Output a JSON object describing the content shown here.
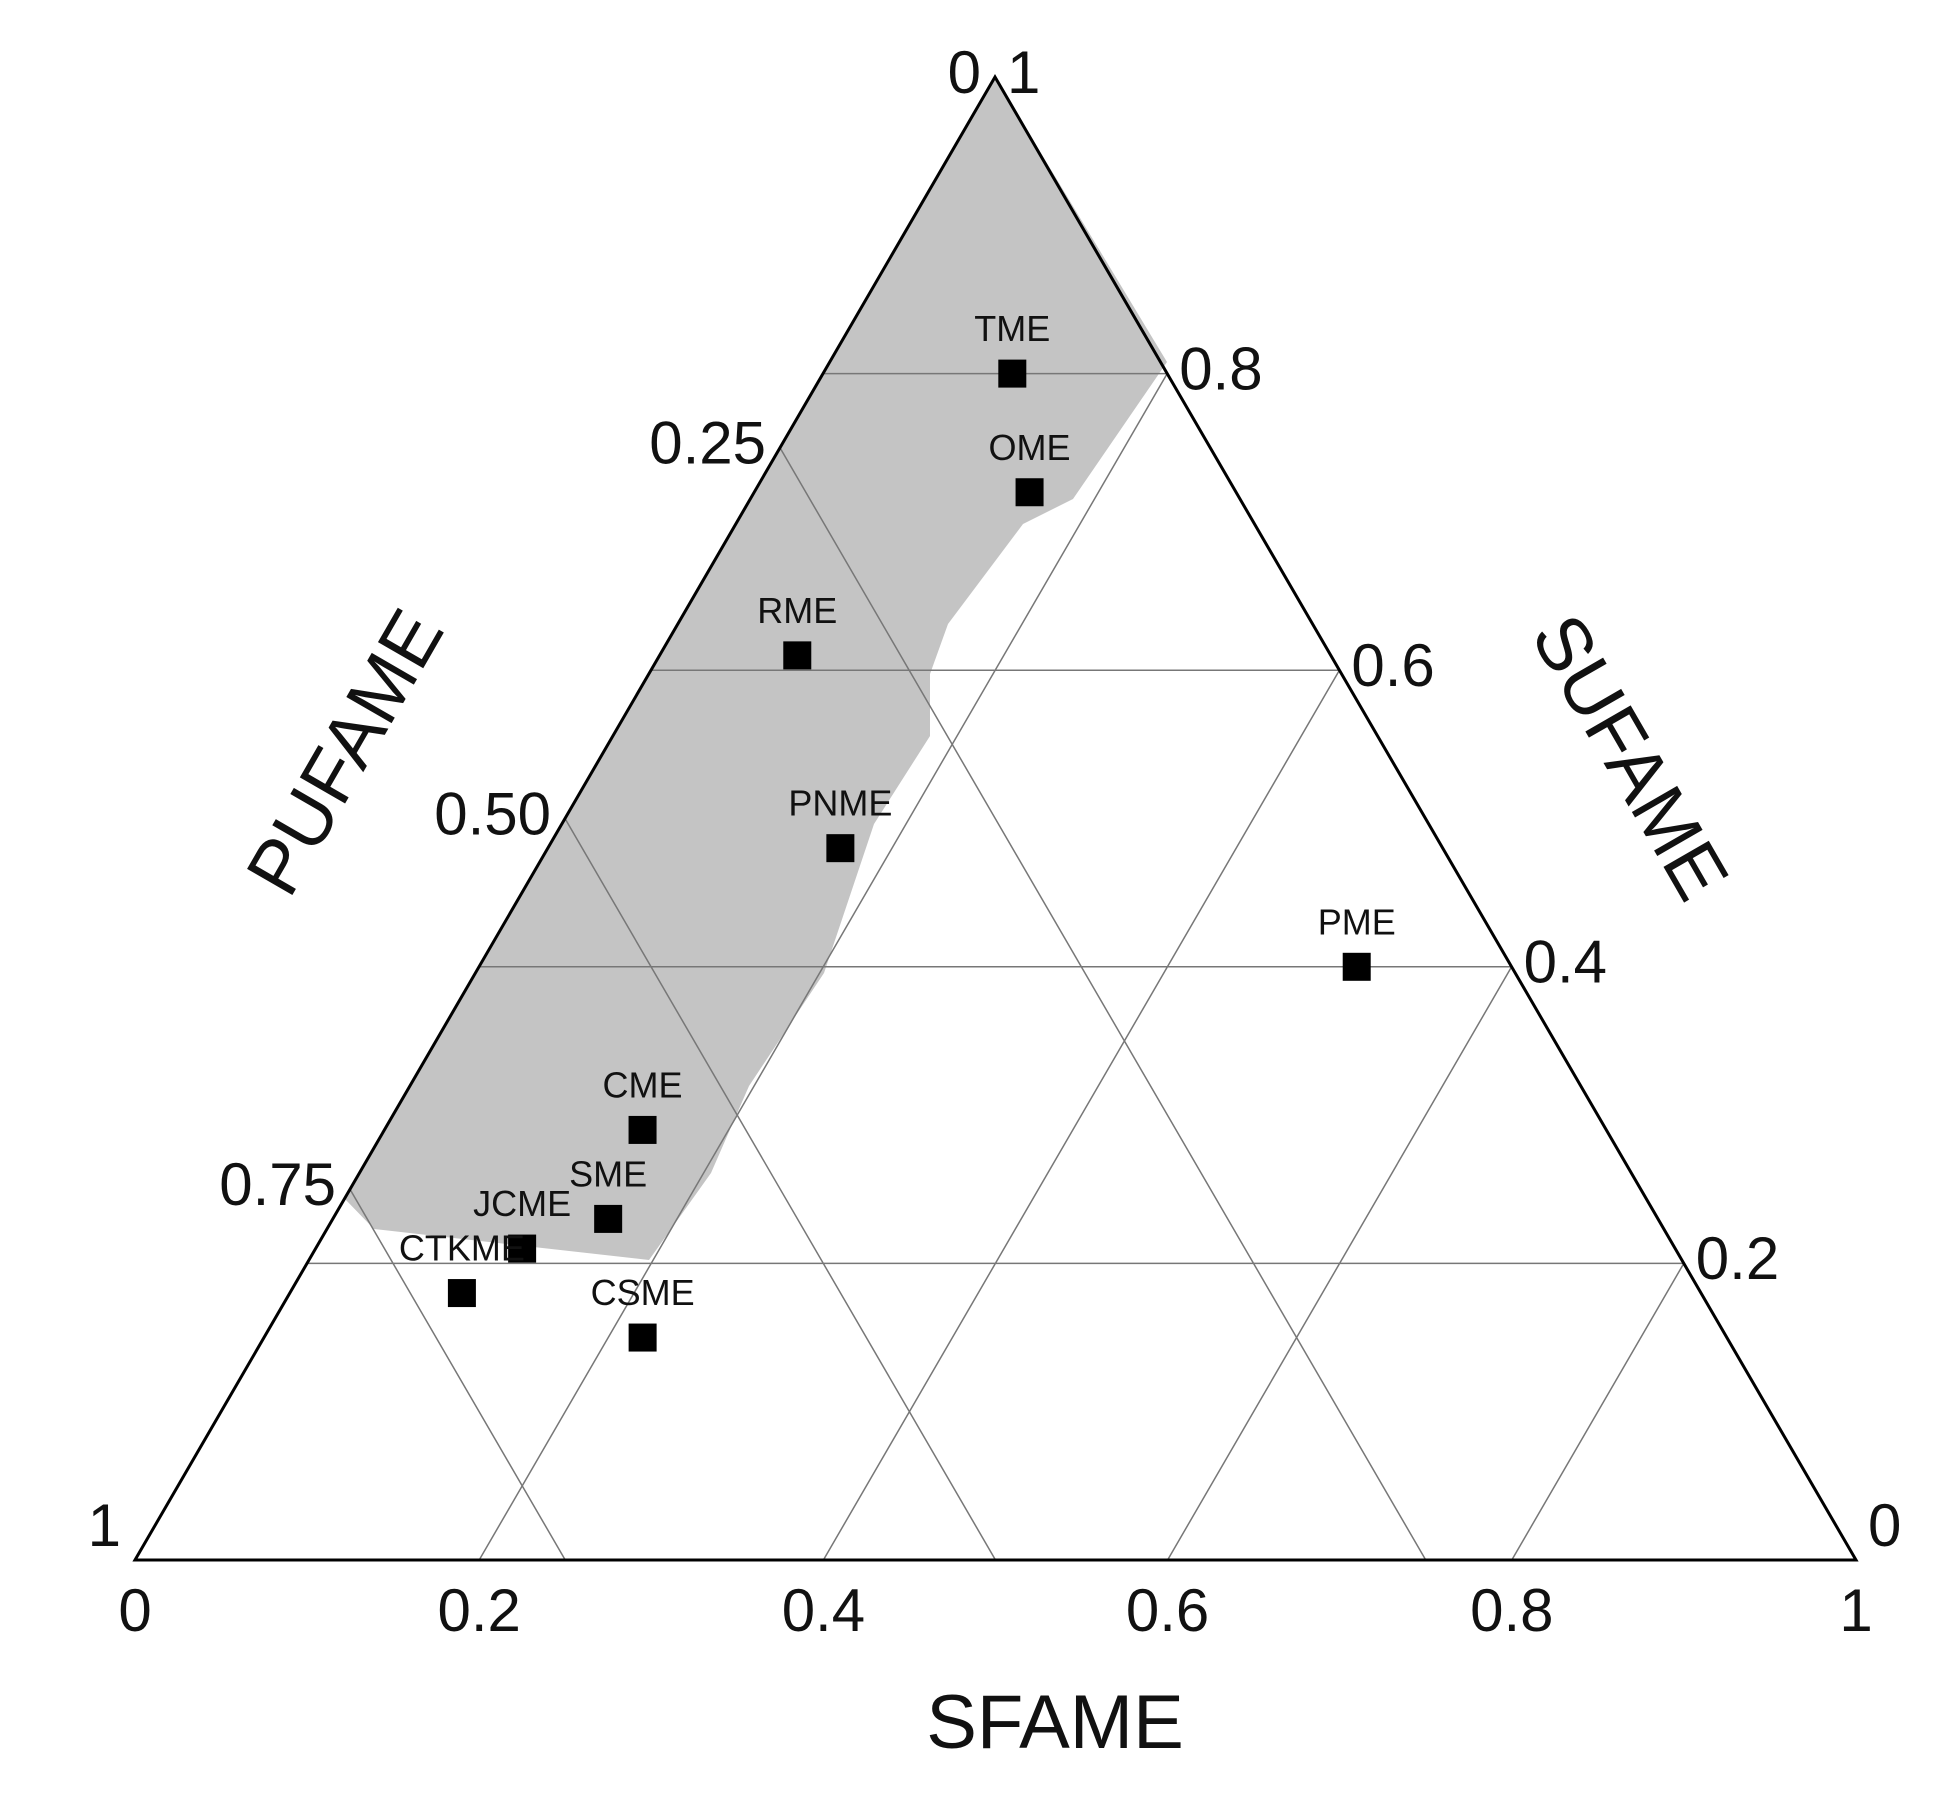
{
  "chart_data": {
    "type": "ternary",
    "axes": {
      "bottom": {
        "title": "SFAME",
        "ticks": [
          0,
          0.2,
          0.4,
          0.6,
          0.8,
          1
        ]
      },
      "right": {
        "title": "SUFAME",
        "ticks": [
          0,
          0.2,
          0.4,
          0.6,
          0.8,
          1
        ]
      },
      "left": {
        "title": "PUFAME",
        "ticks": [
          0,
          0.25,
          {
            "value": 0.5,
            "label": "0.50"
          },
          0.75,
          1
        ]
      }
    },
    "color": "#000000",
    "points": [
      {
        "label": "TME",
        "sfame": 0.11,
        "sufame": 0.8,
        "pufame": 0.09
      },
      {
        "label": "OME",
        "sfame": 0.16,
        "sufame": 0.72,
        "pufame": 0.12
      },
      {
        "label": "RME",
        "sfame": 0.08,
        "sufame": 0.61,
        "pufame": 0.31
      },
      {
        "label": "PNME",
        "sfame": 0.17,
        "sufame": 0.48,
        "pufame": 0.35
      },
      {
        "label": "PME",
        "sfame": 0.51,
        "sufame": 0.4,
        "pufame": 0.09
      },
      {
        "label": "CME",
        "sfame": 0.15,
        "sufame": 0.29,
        "pufame": 0.56
      },
      {
        "label": "SME",
        "sfame": 0.16,
        "sufame": 0.23,
        "pufame": 0.61
      },
      {
        "label": "JCME",
        "sfame": 0.12,
        "sufame": 0.21,
        "pufame": 0.67
      },
      {
        "label": "CTKME",
        "sfame": 0.1,
        "sufame": 0.18,
        "pufame": 0.72
      },
      {
        "label": "CSME",
        "sfame": 0.22,
        "sufame": 0.15,
        "pufame": 0.63
      }
    ]
  }
}
